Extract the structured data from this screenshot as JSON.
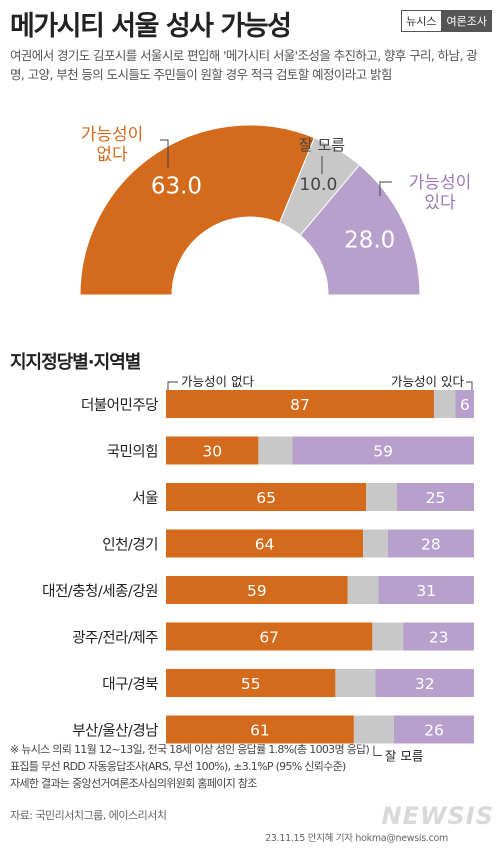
{
  "header": {
    "title": "메가시티 서울 성사 가능성",
    "brand_primary": "뉴시스",
    "brand_secondary": "여론조사",
    "subtitle": "여권에서 경기도 김포시를 서울시로 편입해 '메가시티 서울'조성을 추진하고, 향후 구리, 하남, 광명, 고양, 부천 등의 도시들도 주민들이 원할 경우 적극 검토할 예정이라고 밝힘"
  },
  "colors": {
    "no_possibility": "#d46a1b",
    "dont_know": "#c8c8c8",
    "has_possibility": "#b7a0cc",
    "no_label": "#d46a1b",
    "yes_label": "#9a7ab8",
    "track": "#dddddd"
  },
  "chart_data": [
    {
      "type": "pie",
      "style": "half-donut",
      "slices": [
        {
          "label": "가능성이 없다",
          "value": 63.0,
          "display": "63.0"
        },
        {
          "label": "잘 모름",
          "value": 10.0,
          "display": "10.0"
        },
        {
          "label": "가능성이 있다",
          "value": 28.0,
          "display": "28.0"
        }
      ]
    },
    {
      "type": "bar",
      "orientation": "horizontal",
      "stacked": true,
      "title": "지지정당별·지역별",
      "categories": [
        "더불어민주당",
        "국민의힘",
        "서울",
        "인천/경기",
        "대전/충청/세종/강원",
        "광주/전라/제주",
        "대구/경북",
        "부산/울산/경남"
      ],
      "series": [
        {
          "name": "가능성이 없다",
          "values": [
            87,
            30,
            65,
            64,
            59,
            67,
            55,
            61
          ]
        },
        {
          "name": "잘 모름",
          "values": [
            7,
            11,
            10,
            8,
            10,
            10,
            13,
            13
          ]
        },
        {
          "name": "가능성이 있다",
          "values": [
            6,
            59,
            25,
            28,
            31,
            23,
            32,
            26
          ]
        }
      ],
      "legend_labels": {
        "left": "가능성이 없다",
        "right": "가능성이 있다",
        "bottom": "잘 모름"
      },
      "xlim": [
        0,
        100
      ]
    }
  ],
  "footer": {
    "note_line1": "※ 뉴시스 의뢰 11월 12~13일, 전국 18세 이상 성인 응답률 1.8%(총 1003명 응답)",
    "note_line2": "표집틀 무선 RDD 자동응답조사(ARS, 무선 100%), ±3.1%P (95% 신뢰수준)",
    "note_line3": "자세한 결과는 중앙선거여론조사심의위원회 홈페이지 참조",
    "source": "자료: 국민리서치그룹, 에이스리서치",
    "credit": "23.11.15 안지혜 기자 hokma@newsis.com",
    "watermark": "NEWSIS"
  }
}
